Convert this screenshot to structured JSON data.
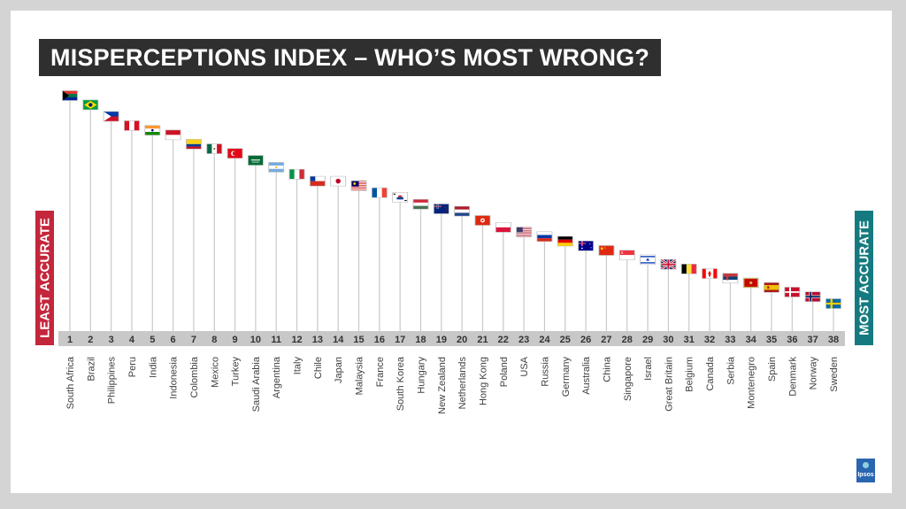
{
  "title": "MISPERCEPTIONS INDEX – WHO’S MOST WRONG?",
  "left_label": "LEAST ACCURATE",
  "right_label": "MOST ACCURATE",
  "logo_text": "Ipsos",
  "colors": {
    "title_bg": "#2f2f2f",
    "least_accurate": "#c4263b",
    "most_accurate": "#147a7f",
    "rank_bar": "#c8c8c8",
    "stem": "#c9c9c9",
    "logo": "#2a66b0"
  },
  "chart_data": {
    "type": "bar",
    "title": "MISPERCEPTIONS INDEX – WHO’S MOST WRONG?",
    "ylabel_low": "LEAST ACCURATE",
    "ylabel_high": "MOST ACCURATE",
    "ranks": [
      1,
      2,
      3,
      4,
      5,
      6,
      7,
      8,
      9,
      10,
      11,
      12,
      13,
      14,
      15,
      16,
      17,
      18,
      19,
      20,
      21,
      22,
      23,
      24,
      25,
      26,
      27,
      28,
      29,
      30,
      31,
      32,
      33,
      34,
      35,
      36,
      37,
      38
    ],
    "categories": [
      "South Africa",
      "Brazil",
      "Philippines",
      "Peru",
      "India",
      "Indonesia",
      "Colombia",
      "Mexico",
      "Turkey",
      "Saudi Arabia",
      "Argentina",
      "Italy",
      "Chile",
      "Japan",
      "Malaysia",
      "France",
      "South Korea",
      "Hungary",
      "New Zealand",
      "Netherlands",
      "Hong Kong",
      "Poland",
      "USA",
      "Russia",
      "Germany",
      "Australia",
      "China",
      "Singapore",
      "Israel",
      "Great Britain",
      "Belgium",
      "Canada",
      "Serbia",
      "Montenegro",
      "Spain",
      "Denmark",
      "Norway",
      "Sweden"
    ],
    "values": [
      100,
      96,
      91,
      87,
      85,
      83,
      79,
      77,
      75,
      72,
      69,
      66,
      63,
      63,
      61,
      58,
      56,
      53,
      51,
      50,
      46,
      43,
      41,
      39,
      37,
      35,
      33,
      31,
      29,
      27,
      25,
      23,
      21,
      19,
      17,
      15,
      13,
      10
    ],
    "flags": [
      "south-africa-flag",
      "brazil-flag",
      "philippines-flag",
      "peru-flag",
      "india-flag",
      "indonesia-flag",
      "colombia-flag",
      "mexico-flag",
      "turkey-flag",
      "saudi-arabia-flag",
      "argentina-flag",
      "italy-flag",
      "chile-flag",
      "japan-flag",
      "malaysia-flag",
      "france-flag",
      "south-korea-flag",
      "hungary-flag",
      "new-zealand-flag",
      "netherlands-flag",
      "hong-kong-flag",
      "poland-flag",
      "usa-flag",
      "russia-flag",
      "germany-flag",
      "australia-flag",
      "china-flag",
      "singapore-flag",
      "israel-flag",
      "great-britain-flag",
      "belgium-flag",
      "canada-flag",
      "serbia-flag",
      "montenegro-flag",
      "spain-flag",
      "denmark-flag",
      "norway-flag",
      "sweden-flag"
    ],
    "value_note": "relative misperception level, 100 = most wrong (estimated from flag heights)",
    "grid": false,
    "legend": "none"
  }
}
